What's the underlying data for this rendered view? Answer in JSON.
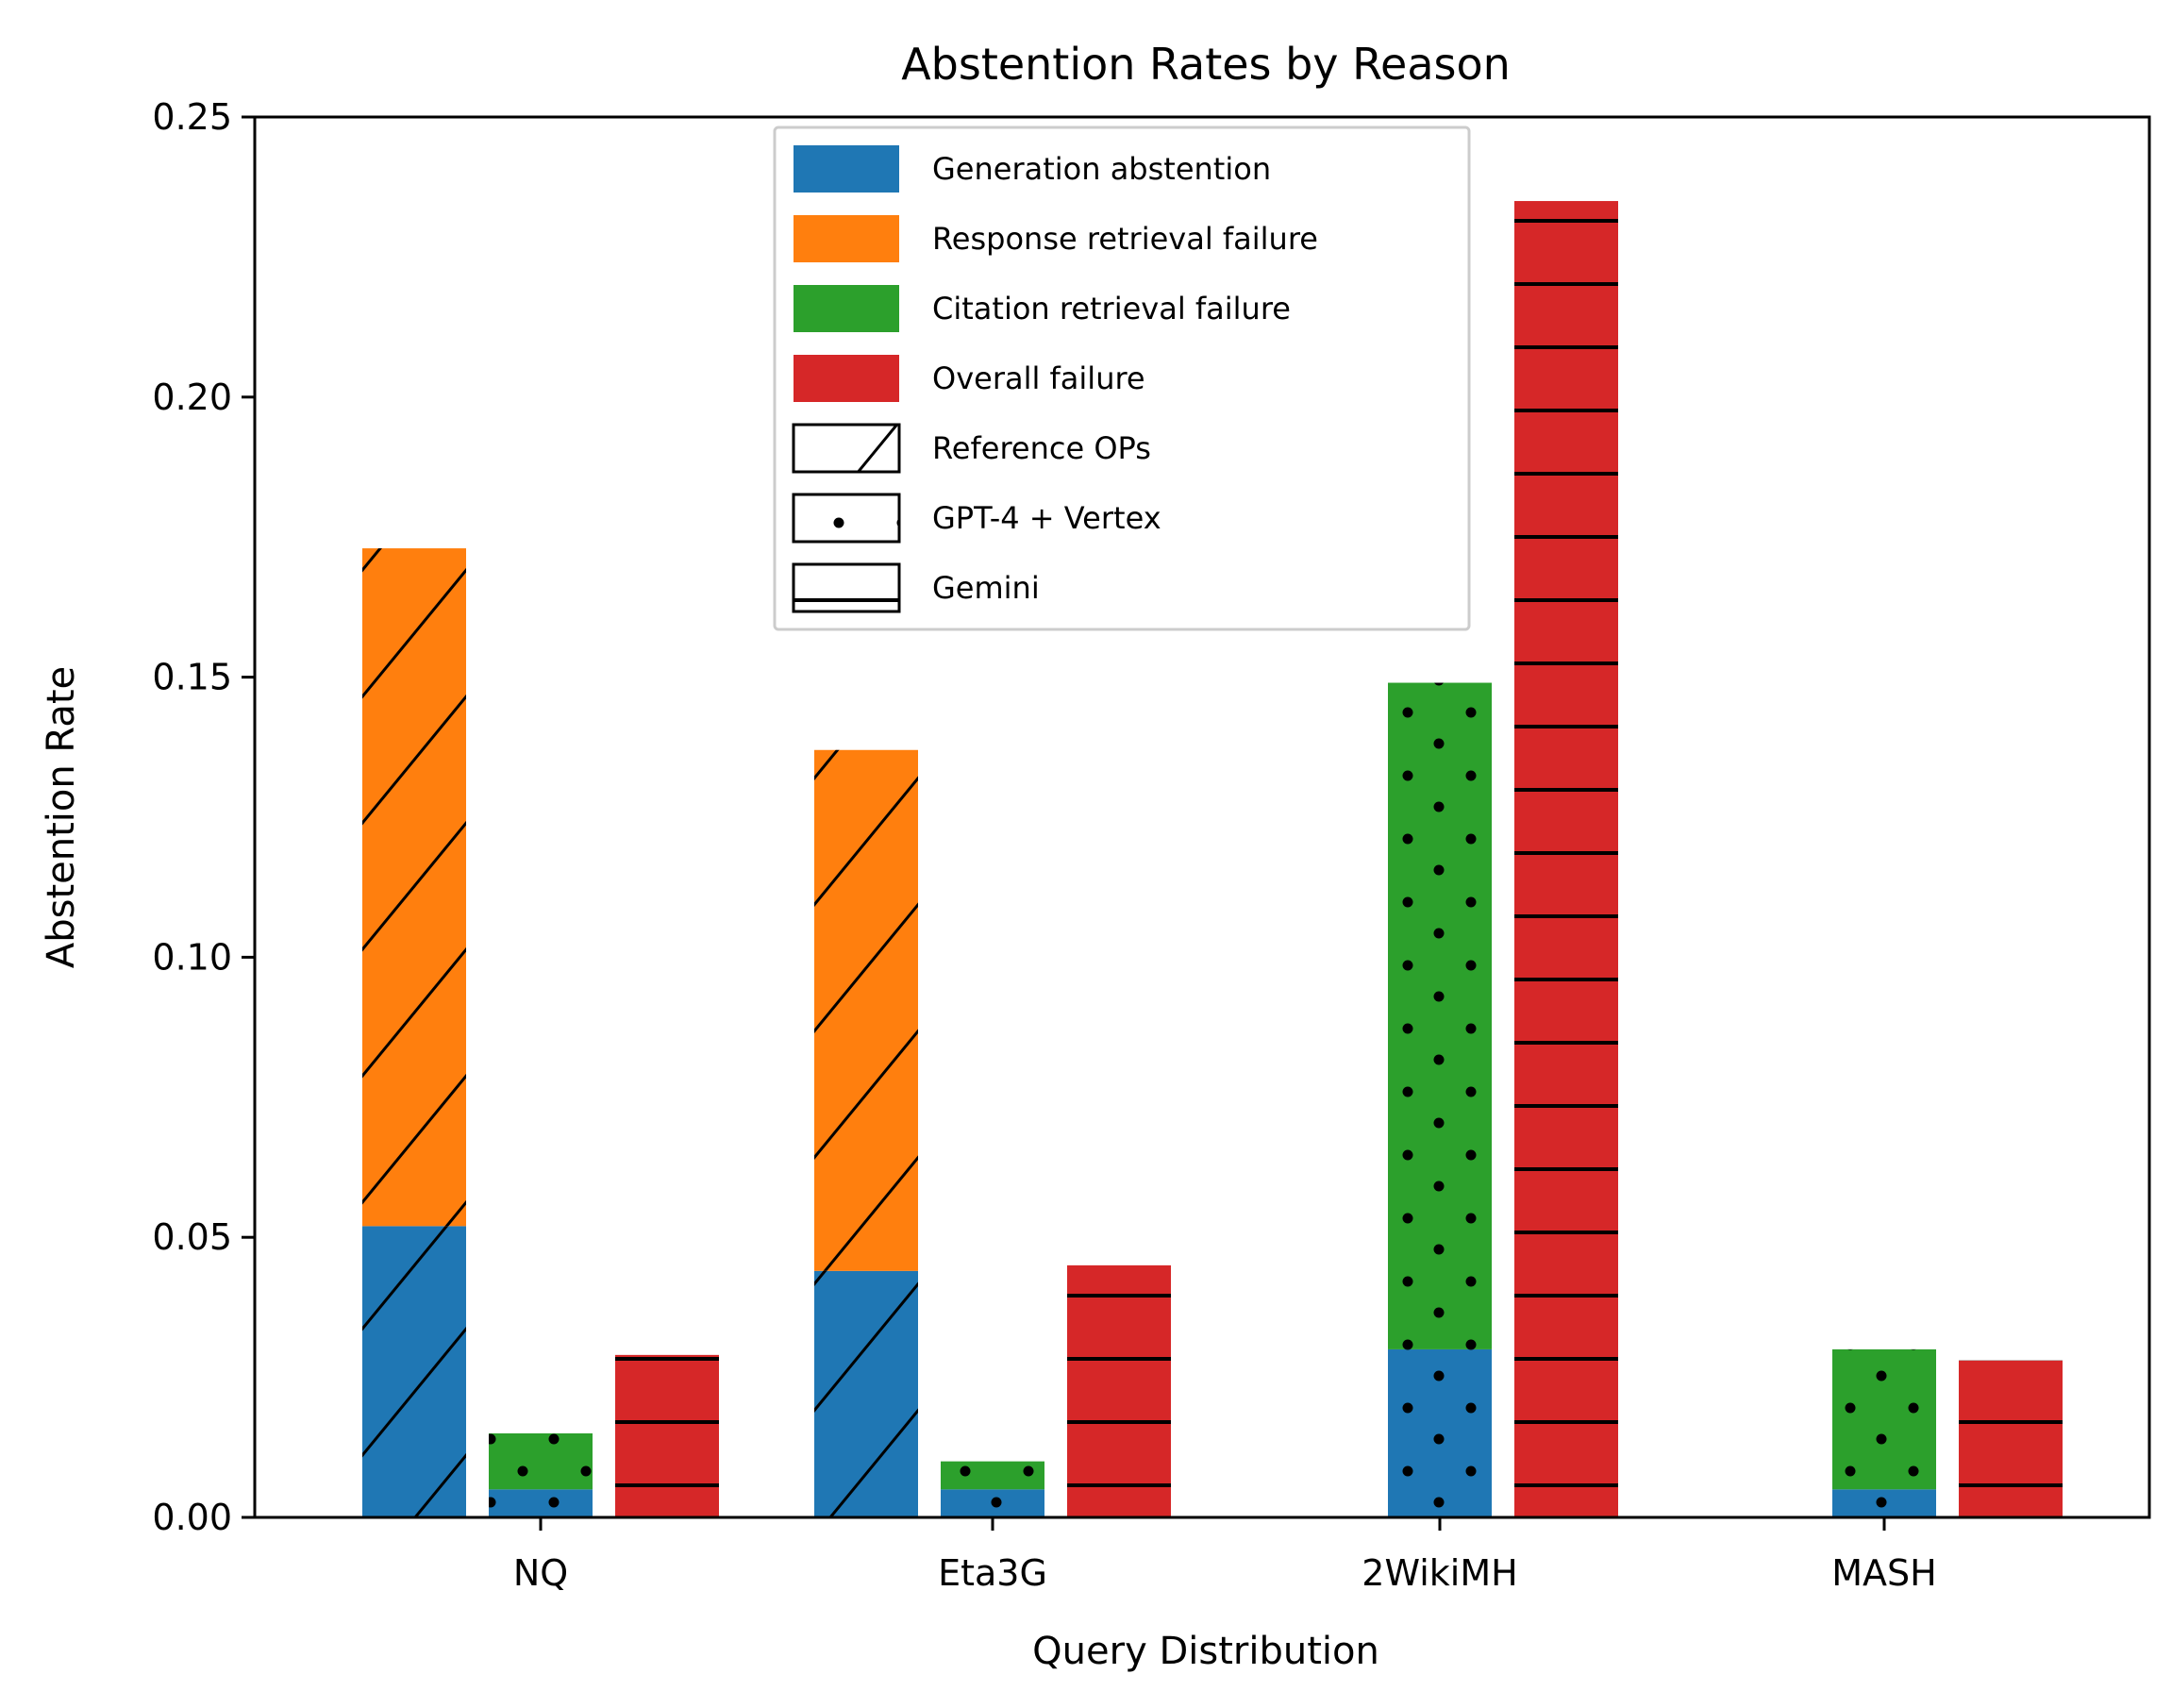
{
  "chart_data": {
    "type": "bar",
    "title": "Abstention Rates by Reason",
    "xlabel": "Query Distribution",
    "ylabel": "Abstention Rate",
    "ylim": [
      0,
      0.25
    ],
    "yticks": [
      "0.00",
      "0.05",
      "0.10",
      "0.15",
      "0.20",
      "0.25"
    ],
    "categories": [
      "NQ",
      "Eta3G",
      "2WikiMH",
      "MASH"
    ],
    "grid": false,
    "legend_position": "top-center",
    "reasons": [
      {
        "key": "generation",
        "name": "Generation abstention",
        "color": "#1f77b4"
      },
      {
        "key": "response",
        "name": "Response retrieval failure",
        "color": "#ff7f0e"
      },
      {
        "key": "citation",
        "name": "Citation retrieval failure",
        "color": "#2ca02c"
      },
      {
        "key": "overall",
        "name": "Overall failure",
        "color": "#d62728"
      }
    ],
    "systems": [
      {
        "key": "reference",
        "name": "Reference OPs",
        "hatch": "diagonal"
      },
      {
        "key": "gpt4",
        "name": "GPT-4 + Vertex",
        "hatch": "dots"
      },
      {
        "key": "gemini",
        "name": "Gemini",
        "hatch": "horizontal"
      }
    ],
    "bars": [
      {
        "category": "NQ",
        "system": "reference",
        "stack": [
          {
            "reason": "generation",
            "value": 0.052
          },
          {
            "reason": "response",
            "value": 0.121
          }
        ]
      },
      {
        "category": "NQ",
        "system": "gpt4",
        "stack": [
          {
            "reason": "generation",
            "value": 0.005
          },
          {
            "reason": "citation",
            "value": 0.01
          }
        ]
      },
      {
        "category": "NQ",
        "system": "gemini",
        "stack": [
          {
            "reason": "overall",
            "value": 0.029
          }
        ]
      },
      {
        "category": "Eta3G",
        "system": "reference",
        "stack": [
          {
            "reason": "generation",
            "value": 0.044
          },
          {
            "reason": "response",
            "value": 0.093
          }
        ]
      },
      {
        "category": "Eta3G",
        "system": "gpt4",
        "stack": [
          {
            "reason": "generation",
            "value": 0.005
          },
          {
            "reason": "citation",
            "value": 0.005
          }
        ]
      },
      {
        "category": "Eta3G",
        "system": "gemini",
        "stack": [
          {
            "reason": "overall",
            "value": 0.045
          }
        ]
      },
      {
        "category": "2WikiMH",
        "system": "gpt4",
        "stack": [
          {
            "reason": "generation",
            "value": 0.03
          },
          {
            "reason": "citation",
            "value": 0.119
          }
        ]
      },
      {
        "category": "2WikiMH",
        "system": "gemini",
        "stack": [
          {
            "reason": "overall",
            "value": 0.235
          }
        ]
      },
      {
        "category": "MASH",
        "system": "gpt4",
        "stack": [
          {
            "reason": "generation",
            "value": 0.005
          },
          {
            "reason": "citation",
            "value": 0.025
          }
        ]
      },
      {
        "category": "MASH",
        "system": "gemini",
        "stack": [
          {
            "reason": "overall",
            "value": 0.028
          }
        ]
      }
    ]
  }
}
